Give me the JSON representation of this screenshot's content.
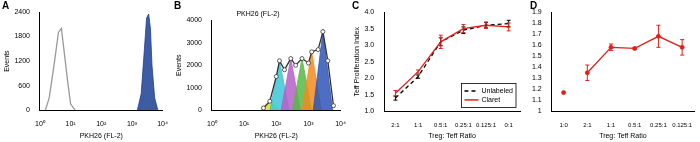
{
  "chart_data": [
    {
      "panel": "A",
      "type": "line",
      "x_label": "PKH26 (FL-2)",
      "y_label": "Events",
      "log": "x",
      "grid": false,
      "xlim": [
        1,
        10000
      ],
      "xticks": [
        {
          "value": 1,
          "label": "10⁰"
        },
        {
          "value": 10,
          "label": "10¹"
        },
        {
          "value": 100,
          "label": "10²"
        },
        {
          "value": 1000,
          "label": "10³"
        },
        {
          "value": 10000,
          "label": "10⁴"
        }
      ],
      "ylim": [
        0,
        2400
      ],
      "yticks": [
        0,
        600,
        1200,
        1800,
        2400
      ],
      "series": [
        {
          "type": "line",
          "color": "#999999",
          "x": [
            1.5,
            2,
            3,
            4,
            5,
            6,
            8,
            10,
            14
          ],
          "values": [
            0,
            300,
            1200,
            1900,
            2000,
            1500,
            700,
            150,
            0
          ]
        },
        {
          "type": "area",
          "color": "#1c3f94",
          "x": [
            1500,
            2000,
            2500,
            3000,
            3500,
            4000,
            4500,
            5500,
            7000
          ],
          "values": [
            0,
            400,
            1400,
            2250,
            2350,
            2000,
            1100,
            300,
            0
          ]
        }
      ]
    },
    {
      "panel": "B",
      "type": "line",
      "title": "PKH26 (FL-2)",
      "x_label": "PKH26 (FL-2)",
      "y_label": "Events",
      "log": "x",
      "grid": false,
      "xlim": [
        1,
        10000
      ],
      "xticks": [
        {
          "value": 1,
          "label": "10⁰"
        },
        {
          "value": 10,
          "label": "10¹"
        },
        {
          "value": 100,
          "label": "10²"
        },
        {
          "value": 1000,
          "label": "10³"
        },
        {
          "value": 10000,
          "label": "10⁴"
        }
      ],
      "ylim": [
        0,
        4000
      ],
      "yticks": [
        0,
        1000,
        2000,
        3000,
        4000
      ],
      "series": [
        {
          "type": "area",
          "color": "#f2d21b",
          "x": [
            32,
            45,
            63,
            89,
            126
          ],
          "values": [
            0,
            200,
            400,
            200,
            0
          ]
        },
        {
          "type": "area",
          "color": "#3ec6d8",
          "x": [
            63,
            89,
            126,
            178,
            251
          ],
          "values": [
            0,
            1100,
            2200,
            1100,
            0
          ]
        },
        {
          "type": "area",
          "color": "#b65fc9",
          "x": [
            141,
            200,
            282,
            398,
            562
          ],
          "values": [
            0,
            1150,
            2300,
            1150,
            0
          ]
        },
        {
          "type": "area",
          "color": "#58b947",
          "x": [
            316,
            447,
            631,
            891,
            1259
          ],
          "values": [
            0,
            1150,
            2300,
            1150,
            0
          ]
        },
        {
          "type": "area",
          "color": "#f28c1e",
          "x": [
            631,
            891,
            1259,
            1778,
            2512
          ],
          "values": [
            0,
            1300,
            2600,
            1300,
            0
          ]
        },
        {
          "type": "area",
          "color": "#2e55b8",
          "x": [
            1413,
            1995,
            2818,
            3981,
            5623
          ],
          "values": [
            0,
            1750,
            3500,
            1750,
            0
          ]
        },
        {
          "type": "line",
          "color": "#333333",
          "marker": "circle",
          "x": [
            40,
            63,
            100,
            126,
            180,
            282,
            400,
            631,
            1000,
            1259,
            2000,
            2818,
            4000,
            6000
          ],
          "values": [
            100,
            400,
            1500,
            2200,
            1800,
            2300,
            2000,
            2300,
            2100,
            2600,
            2700,
            3500,
            2200,
            200
          ]
        }
      ]
    },
    {
      "panel": "C",
      "type": "line",
      "x_label": "Treg: Teff Ratio",
      "y_label": "Teff Proliferation Index",
      "grid": false,
      "legend": "lower right",
      "categories": [
        "2:1",
        "1:1",
        "0.5:1",
        "0.25:1",
        "0.125:1",
        "0:1"
      ],
      "ylim": [
        1,
        4
      ],
      "yticks": [
        {
          "value": 1,
          "label": "1.0"
        },
        {
          "value": 1.5,
          "label": "1.5"
        },
        {
          "value": 2,
          "label": "2.0"
        },
        {
          "value": 2.5,
          "label": "2.5"
        },
        {
          "value": 3,
          "label": "3.0"
        },
        {
          "value": 3.5,
          "label": "3.5"
        },
        {
          "value": 4,
          "label": "4.0"
        }
      ],
      "series": [
        {
          "name": "Unlabeled",
          "color": "#000000",
          "line_style": "dashed",
          "values": [
            1.4,
            2.05,
            3.1,
            3.45,
            3.6,
            3.65
          ],
          "errors": [
            0.06,
            0.05,
            0.12,
            0.1,
            0.08,
            0.1
          ]
        },
        {
          "name": "Claret",
          "color": "#e0201b",
          "line_style": "solid",
          "values": [
            1.55,
            2.2,
            3.1,
            3.5,
            3.6,
            3.55
          ],
          "errors": [
            0.08,
            0.05,
            0.2,
            0.12,
            0.1,
            0.12
          ]
        }
      ]
    },
    {
      "panel": "D",
      "type": "line",
      "x_label": "Treg: Teff Ratio",
      "grid": false,
      "categories": [
        "1:0",
        "2:1",
        "1:1",
        "0.5:1",
        "0.25:1",
        "0.125:1"
      ],
      "ylim": [
        1,
        1.9
      ],
      "yticks": [
        1,
        1.1,
        1.2,
        1.3,
        1.4,
        1.5,
        1.6,
        1.7,
        1.8,
        1.9
      ],
      "series": [
        {
          "color": "#e0201b",
          "line_style": "none",
          "marker": "circle",
          "values": [
            1.17,
            null,
            null,
            null,
            null,
            null
          ]
        },
        {
          "color": "#e0201b",
          "line_style": "solid",
          "marker": "circle",
          "values": [
            null,
            1.35,
            1.58,
            1.57,
            1.68,
            1.58
          ],
          "errors": [
            null,
            0.07,
            0.03,
            0.01,
            0.1,
            0.07
          ]
        }
      ]
    }
  ]
}
